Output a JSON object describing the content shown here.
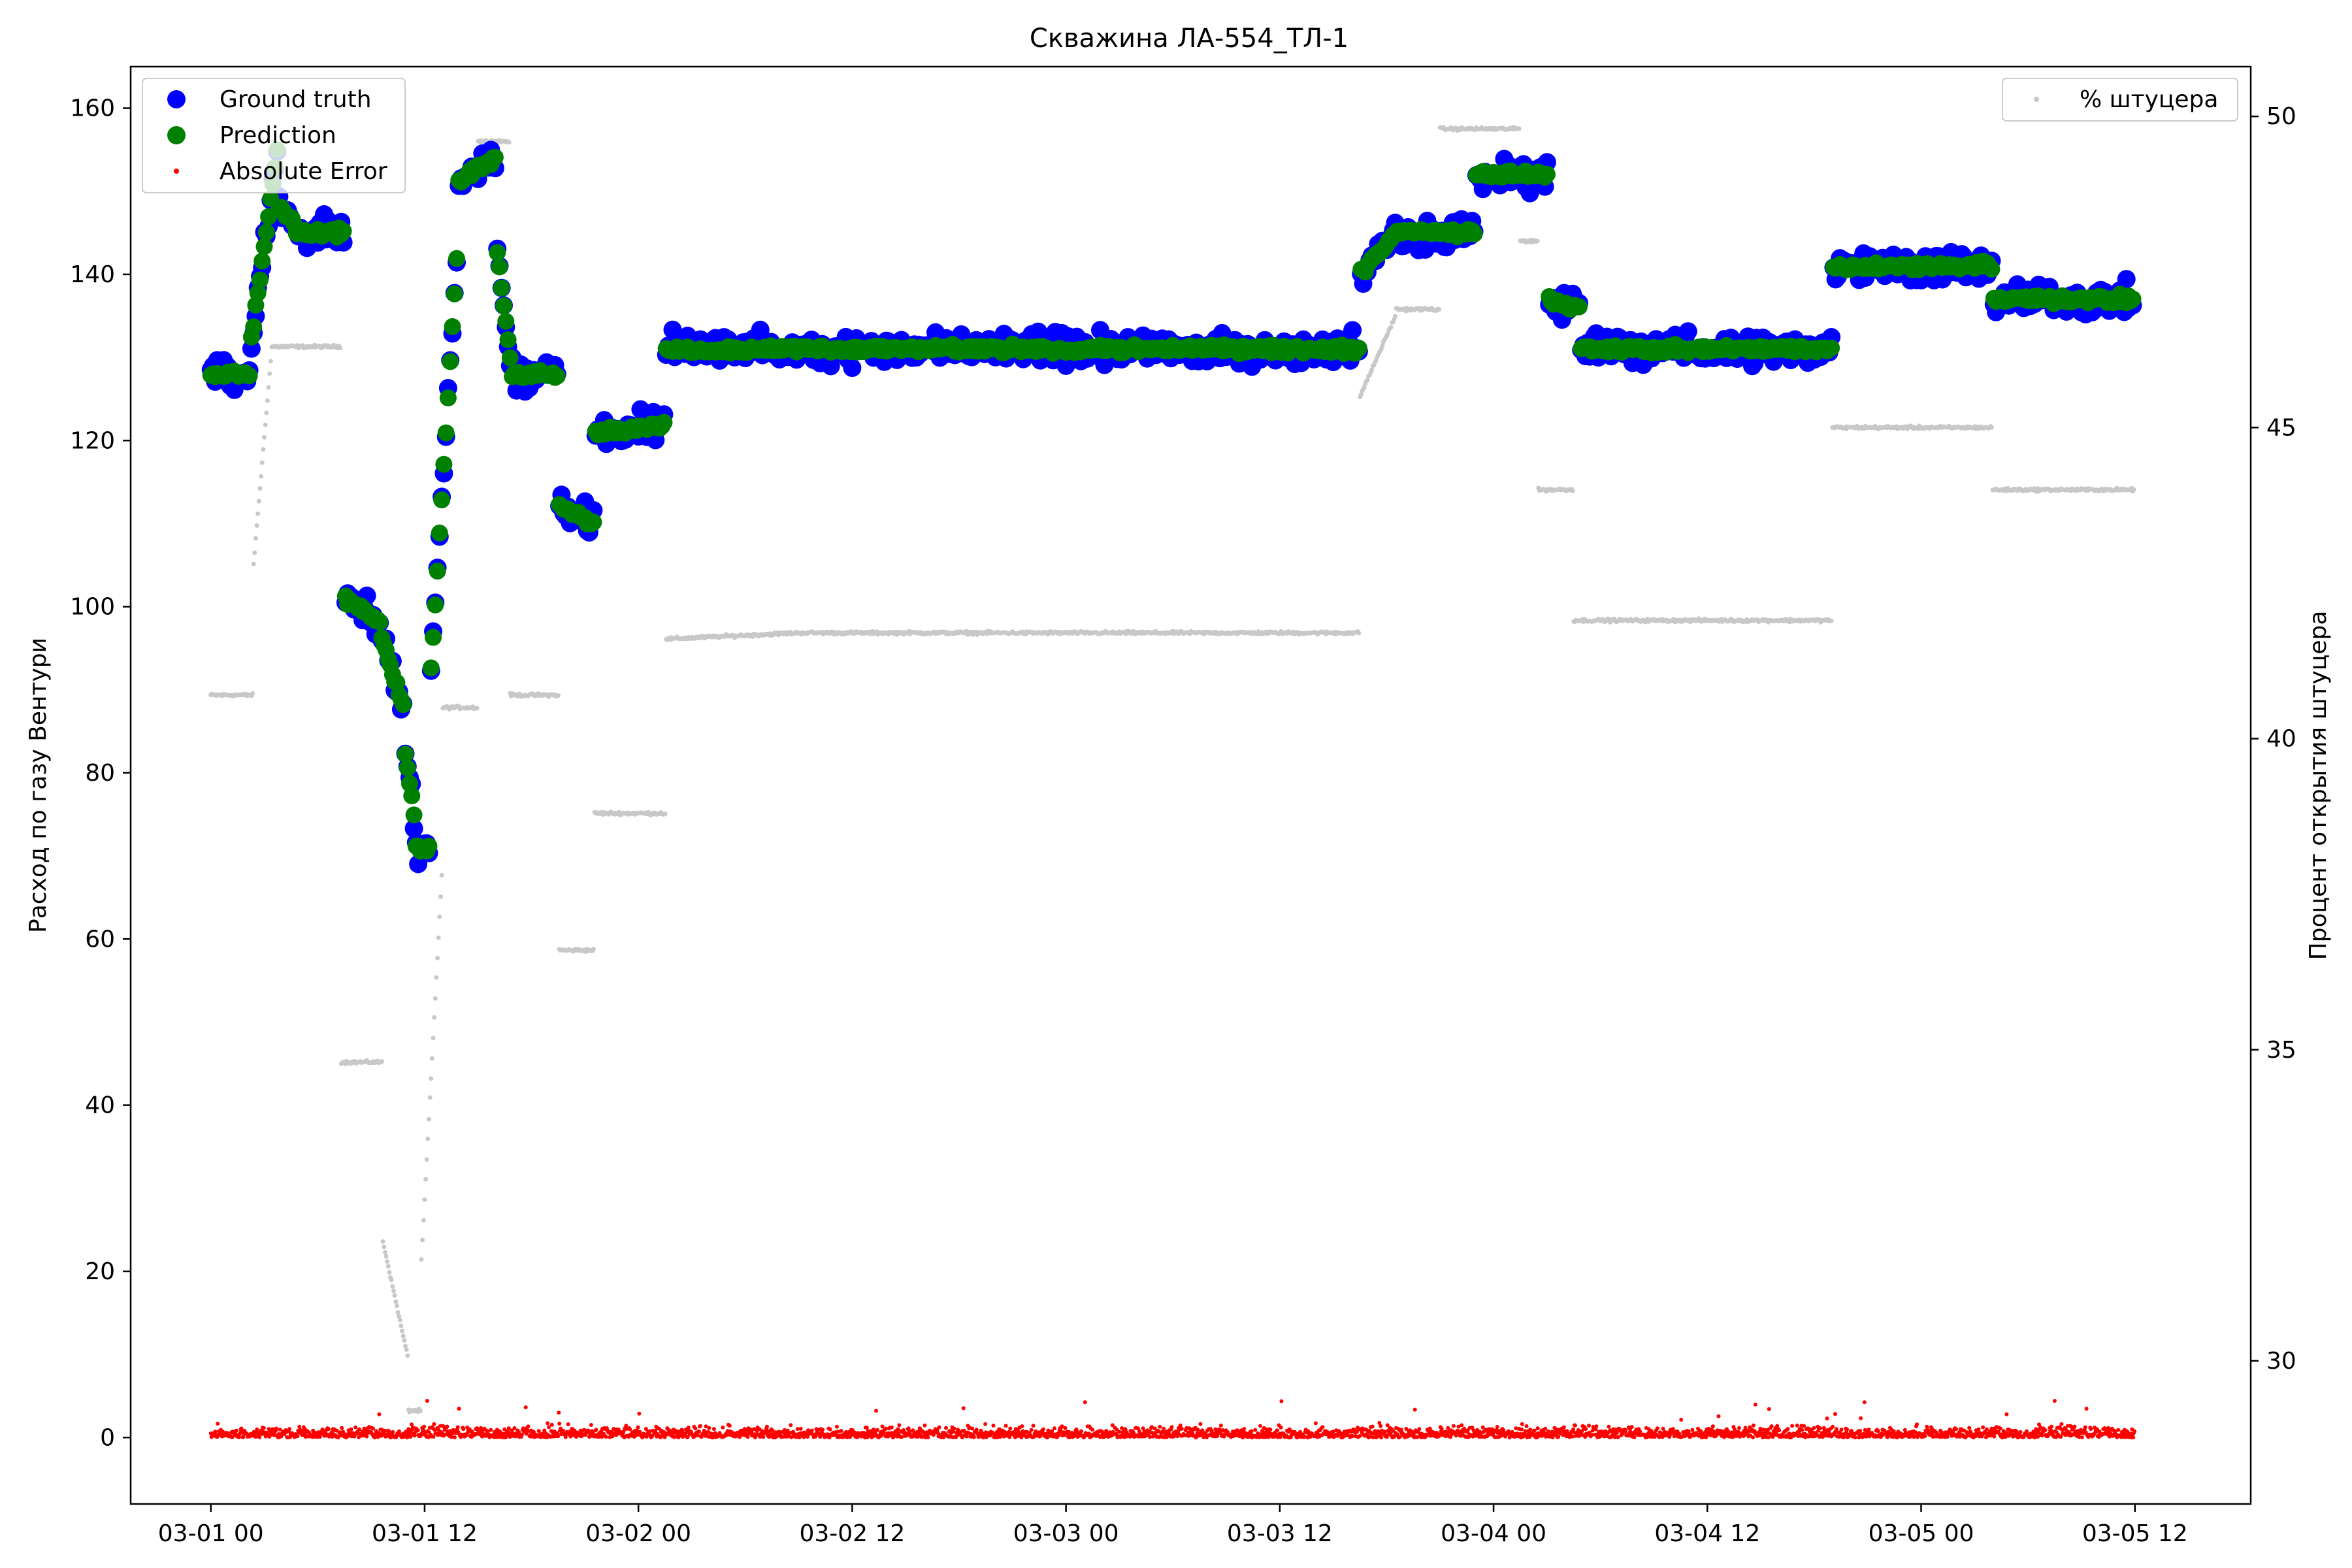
{
  "chart_data": {
    "type": "scatter",
    "title": "Скважина ЛА-554_ТЛ-1",
    "ylabel": "Расход по газу Вентури",
    "y2label": "Процент открытия штуцера",
    "ylim": [
      -8,
      165
    ],
    "y2lim": [
      27.7,
      50.8
    ],
    "x_range_hours": [
      -4.5,
      114.5
    ],
    "x_tick_labels": [
      "03-01 00",
      "03-01 12",
      "03-02 00",
      "03-02 12",
      "03-03 00",
      "03-03 12",
      "03-04 00",
      "03-04 12",
      "03-05 00",
      "03-05 12"
    ],
    "x_tick_hours": [
      0,
      12,
      24,
      36,
      48,
      60,
      72,
      84,
      96,
      108
    ],
    "y_ticks": [
      0,
      20,
      40,
      60,
      80,
      100,
      120,
      140,
      160
    ],
    "y2_ticks": [
      30,
      35,
      40,
      45,
      50
    ],
    "legend_left": [
      "Ground truth",
      "Prediction",
      "Absolute Error"
    ],
    "legend_right": [
      "% штуцера"
    ],
    "colors": {
      "ground_truth": "#0000ff",
      "prediction": "#008000",
      "abs_error": "#ff0000",
      "choke": "#c8c8c8"
    },
    "flow_segments": [
      {
        "t0": 0.0,
        "t1": 2.2,
        "y0": 128,
        "y1": 128
      },
      {
        "t0": 2.2,
        "t1": 3.8,
        "y0": 131,
        "y1": 156
      },
      {
        "t0": 3.8,
        "t1": 4.8,
        "y0": 148,
        "y1": 146
      },
      {
        "t0": 4.8,
        "t1": 7.5,
        "y0": 145,
        "y1": 145
      },
      {
        "t0": 7.5,
        "t1": 9.5,
        "y0": 101,
        "y1": 98
      },
      {
        "t0": 9.5,
        "t1": 10.8,
        "y0": 97,
        "y1": 88
      },
      {
        "t0": 10.8,
        "t1": 11.5,
        "y0": 84,
        "y1": 74
      },
      {
        "t0": 11.5,
        "t1": 12.3,
        "y0": 71,
        "y1": 71
      },
      {
        "t0": 12.3,
        "t1": 13.8,
        "y0": 90,
        "y1": 142
      },
      {
        "t0": 13.8,
        "t1": 16.0,
        "y0": 151,
        "y1": 154
      },
      {
        "t0": 16.0,
        "t1": 16.8,
        "y0": 144,
        "y1": 130
      },
      {
        "t0": 16.8,
        "t1": 19.5,
        "y0": 128,
        "y1": 128
      },
      {
        "t0": 19.5,
        "t1": 21.5,
        "y0": 112,
        "y1": 110
      },
      {
        "t0": 21.5,
        "t1": 25.5,
        "y0": 121,
        "y1": 122
      },
      {
        "t0": 25.5,
        "t1": 64.5,
        "y0": 131,
        "y1": 131
      },
      {
        "t0": 64.5,
        "t1": 66.5,
        "y0": 140,
        "y1": 145
      },
      {
        "t0": 66.5,
        "t1": 71.0,
        "y0": 145,
        "y1": 145
      },
      {
        "t0": 71.0,
        "t1": 75.0,
        "y0": 152,
        "y1": 152
      },
      {
        "t0": 75.0,
        "t1": 76.8,
        "y0": 137,
        "y1": 136
      },
      {
        "t0": 76.8,
        "t1": 91.0,
        "y0": 131,
        "y1": 131
      },
      {
        "t0": 91.0,
        "t1": 100.0,
        "y0": 141,
        "y1": 141
      },
      {
        "t0": 100.0,
        "t1": 108.0,
        "y0": 137,
        "y1": 137
      }
    ],
    "choke_segments": [
      {
        "t0": 0.0,
        "t1": 2.4,
        "v0": 40.7,
        "v1": 40.7
      },
      {
        "t0": 2.4,
        "t1": 3.4,
        "v0": 42.8,
        "v1": 46.2
      },
      {
        "t0": 3.4,
        "t1": 7.3,
        "v0": 46.3,
        "v1": 46.3
      },
      {
        "t0": 7.3,
        "t1": 9.6,
        "v0": 34.8,
        "v1": 34.8
      },
      {
        "t0": 9.6,
        "t1": 11.1,
        "v0": 32.0,
        "v1": 30.0
      },
      {
        "t0": 11.1,
        "t1": 11.8,
        "v0": 29.2,
        "v1": 29.2
      },
      {
        "t0": 11.8,
        "t1": 13.0,
        "v0": 31.5,
        "v1": 38.0
      },
      {
        "t0": 13.0,
        "t1": 15.0,
        "v0": 40.5,
        "v1": 40.5
      },
      {
        "t0": 15.0,
        "t1": 16.8,
        "v0": 49.6,
        "v1": 49.6
      },
      {
        "t0": 16.8,
        "t1": 19.5,
        "v0": 40.7,
        "v1": 40.7
      },
      {
        "t0": 19.5,
        "t1": 21.5,
        "v0": 36.6,
        "v1": 36.6
      },
      {
        "t0": 21.5,
        "t1": 25.5,
        "v0": 38.8,
        "v1": 38.8
      },
      {
        "t0": 25.5,
        "t1": 33.0,
        "v0": 41.6,
        "v1": 41.7
      },
      {
        "t0": 33.0,
        "t1": 64.5,
        "v0": 41.7,
        "v1": 41.7
      },
      {
        "t0": 64.5,
        "t1": 66.5,
        "v0": 45.5,
        "v1": 46.8
      },
      {
        "t0": 66.5,
        "t1": 69.0,
        "v0": 46.9,
        "v1": 46.9
      },
      {
        "t0": 69.0,
        "t1": 73.5,
        "v0": 49.8,
        "v1": 49.8
      },
      {
        "t0": 73.5,
        "t1": 74.5,
        "v0": 48.0,
        "v1": 48.0
      },
      {
        "t0": 74.5,
        "t1": 76.5,
        "v0": 44.0,
        "v1": 44.0
      },
      {
        "t0": 76.5,
        "t1": 91.0,
        "v0": 41.9,
        "v1": 41.9
      },
      {
        "t0": 91.0,
        "t1": 100.0,
        "v0": 45.0,
        "v1": 45.0
      },
      {
        "t0": 100.0,
        "t1": 108.0,
        "v0": 44.0,
        "v1": 44.0
      }
    ],
    "abs_error_range": [
      0,
      7
    ],
    "abs_error_typical": 1.5
  }
}
